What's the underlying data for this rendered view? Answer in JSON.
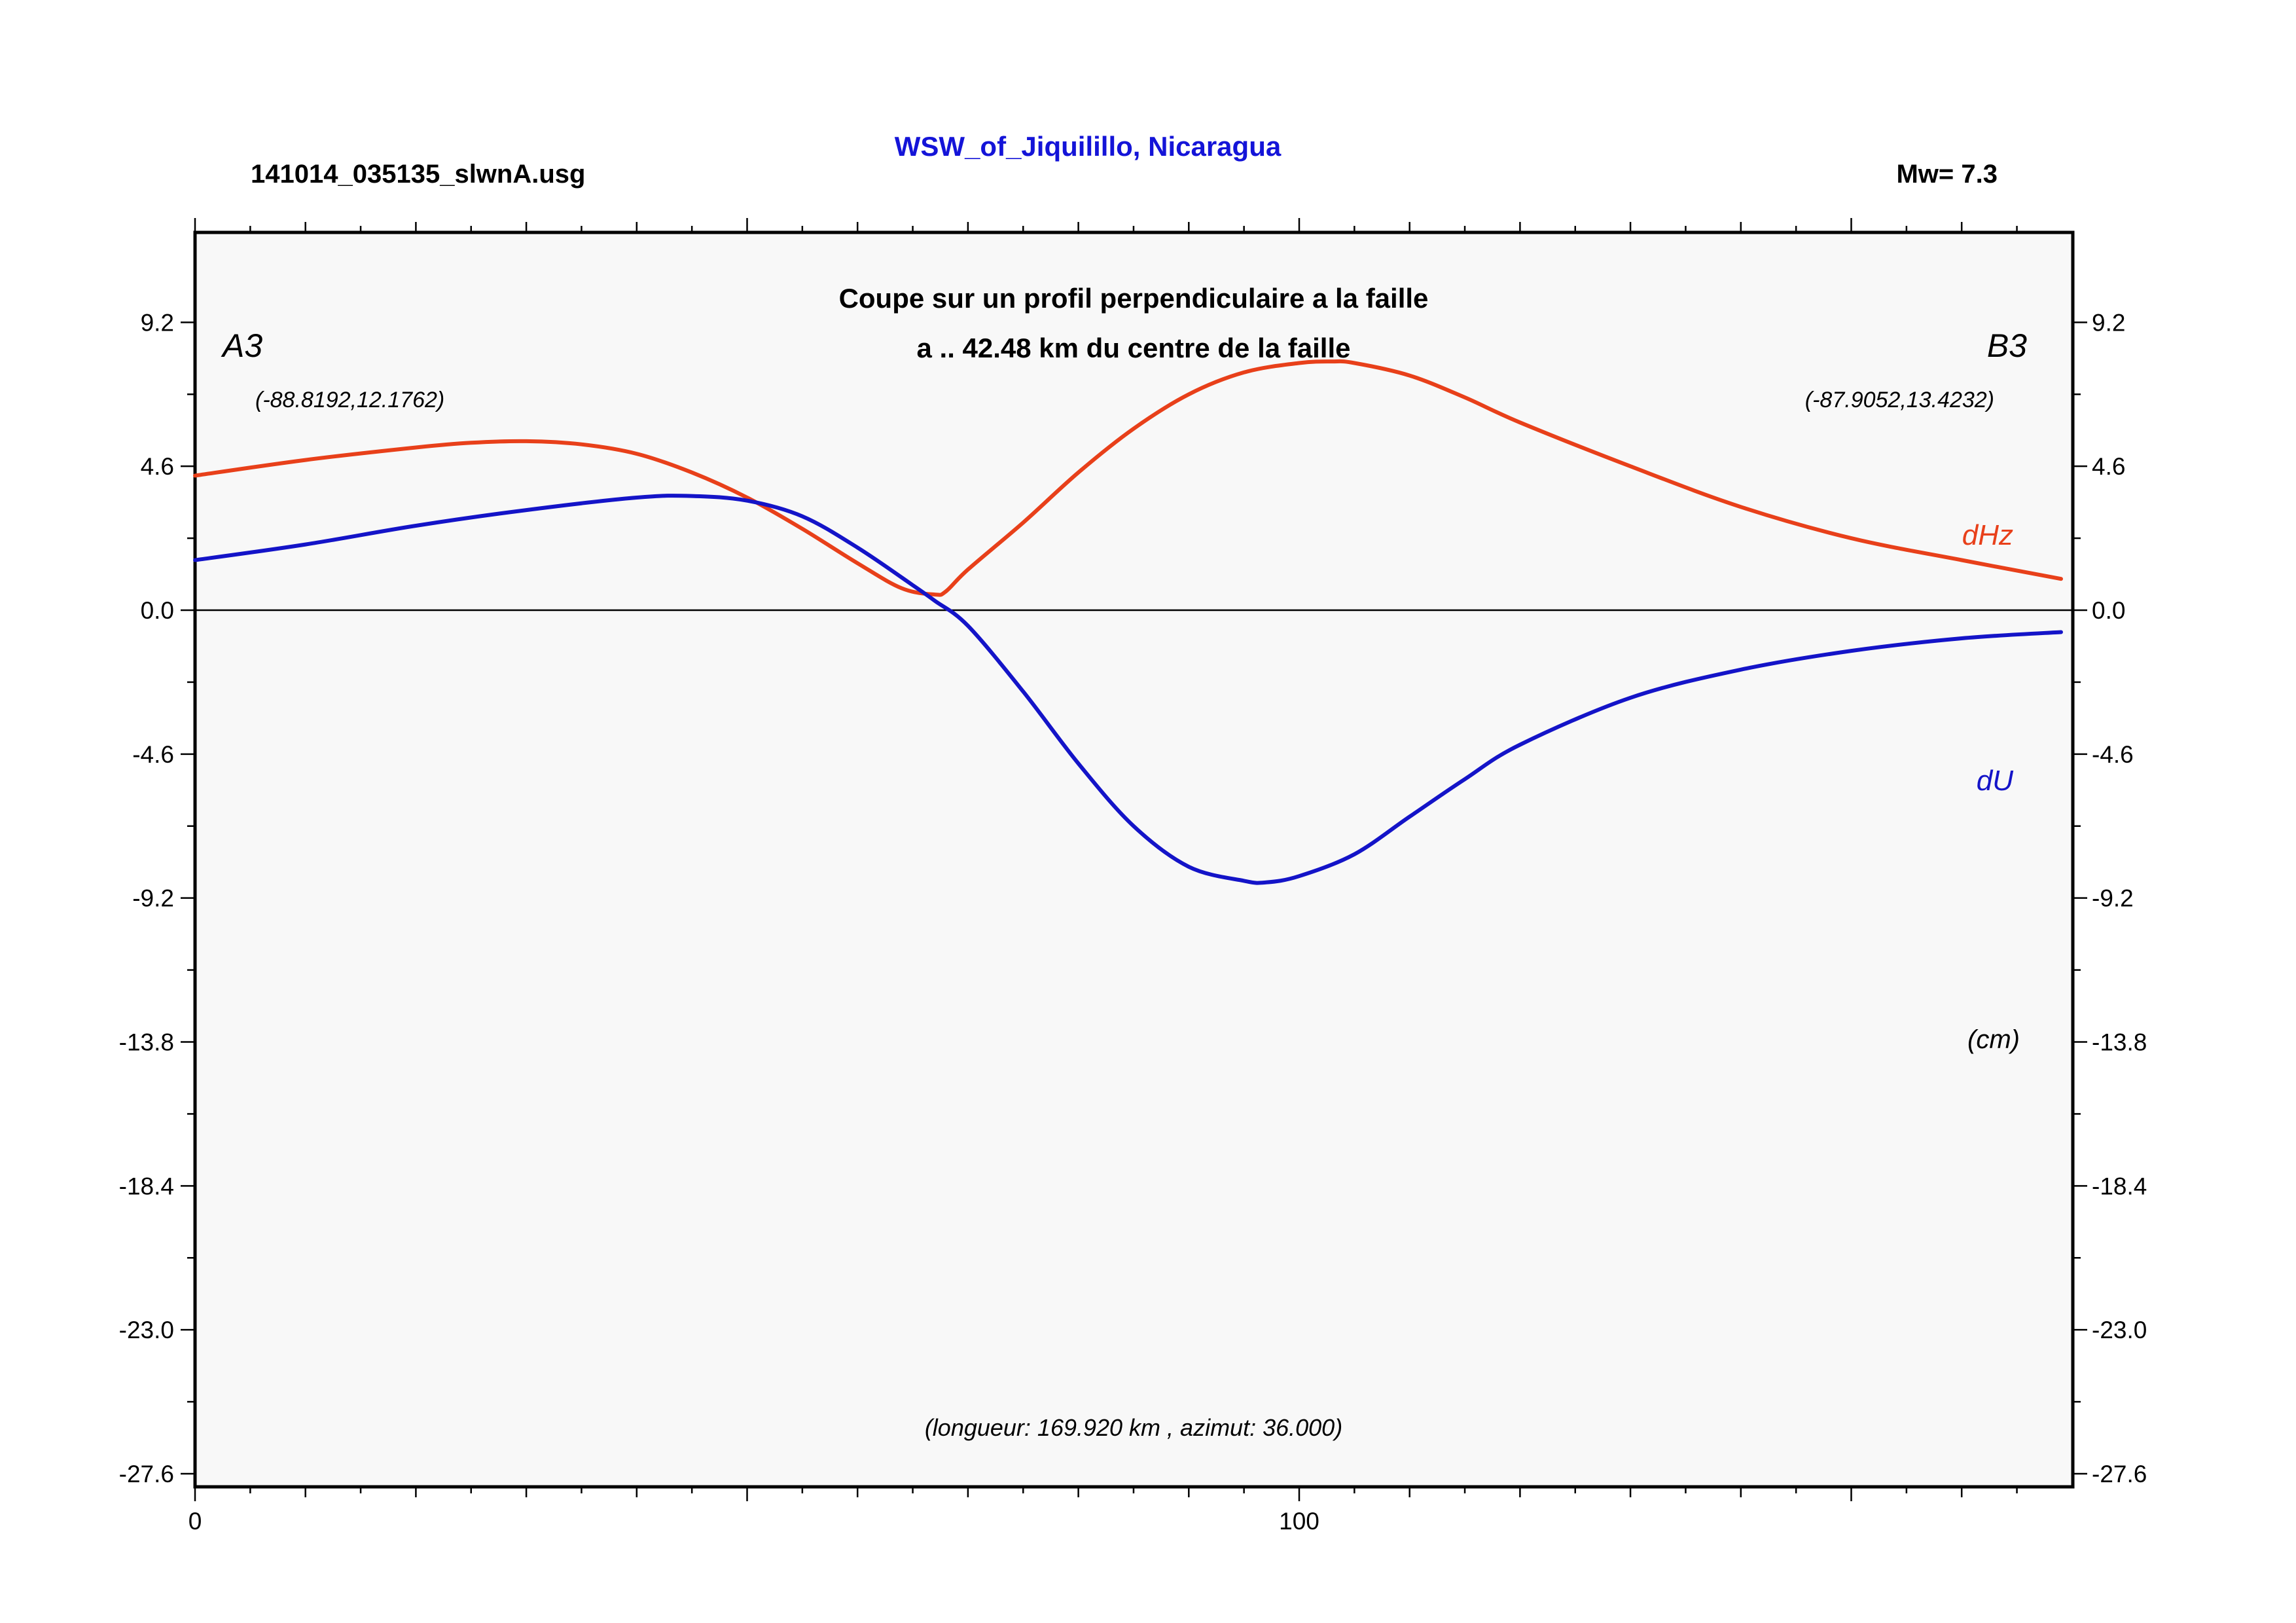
{
  "header": {
    "file_label": "141014_035135_slwnA.usg",
    "location": "WSW_of_Jiquilillo, Nicaragua",
    "magnitude": "Mw= 7.3"
  },
  "plot_title": {
    "line1": "Coupe sur un profil perpendiculaire a la faille",
    "line2": "a .. 42.48 km du centre de la faille"
  },
  "endpoints": {
    "a_label": "A3",
    "a_coords": "(-88.8192,12.1762)",
    "b_label": "B3",
    "b_coords": "(-87.9052,13.4232)"
  },
  "unit_label": "(cm)",
  "footer_note": "(longueur: 169.920 km , azimut: 36.000)",
  "colors": {
    "dHz": "#e8401a",
    "dU": "#1414c8",
    "location_title": "#1414d8",
    "plot_bg": "#f8f8f8"
  },
  "chart_data": {
    "type": "line",
    "xlim": [
      0,
      169.92
    ],
    "ylim": [
      -27.6,
      11.2
    ],
    "x_tick_labels": [
      "0",
      "100"
    ],
    "y_tick_labels": [
      "9.2",
      "4.6",
      "0.0",
      "-4.6",
      "-9.2",
      "-13.8",
      "-18.4",
      "-23.0",
      "-27.6"
    ],
    "grid": false,
    "series": [
      {
        "name": "dHz",
        "x": [
          0,
          10,
          20,
          25,
          30,
          35,
          40,
          45,
          50,
          55,
          60,
          64,
          67,
          68,
          70,
          75,
          80,
          85,
          90,
          95,
          100,
          103,
          105,
          110,
          115,
          120,
          130,
          140,
          150,
          160,
          169
        ],
        "y": [
          4.3,
          4.8,
          5.2,
          5.35,
          5.4,
          5.3,
          5.0,
          4.4,
          3.6,
          2.6,
          1.5,
          0.7,
          0.5,
          0.6,
          1.3,
          2.8,
          4.4,
          5.8,
          6.9,
          7.6,
          7.9,
          7.95,
          7.9,
          7.5,
          6.8,
          6.0,
          4.6,
          3.3,
          2.3,
          1.6,
          1.0
        ]
      },
      {
        "name": "dU",
        "x": [
          0,
          10,
          20,
          30,
          40,
          45,
          50,
          55,
          60,
          65,
          67,
          70,
          75,
          80,
          85,
          90,
          95,
          97,
          100,
          105,
          110,
          115,
          120,
          130,
          140,
          150,
          160,
          169
        ],
        "y": [
          1.6,
          2.1,
          2.7,
          3.2,
          3.6,
          3.65,
          3.5,
          3.0,
          2.0,
          0.8,
          0.3,
          -0.5,
          -2.6,
          -4.9,
          -6.9,
          -8.2,
          -8.65,
          -8.7,
          -8.5,
          -7.8,
          -6.6,
          -5.4,
          -4.3,
          -2.8,
          -1.9,
          -1.3,
          -0.9,
          -0.7
        ]
      }
    ]
  }
}
